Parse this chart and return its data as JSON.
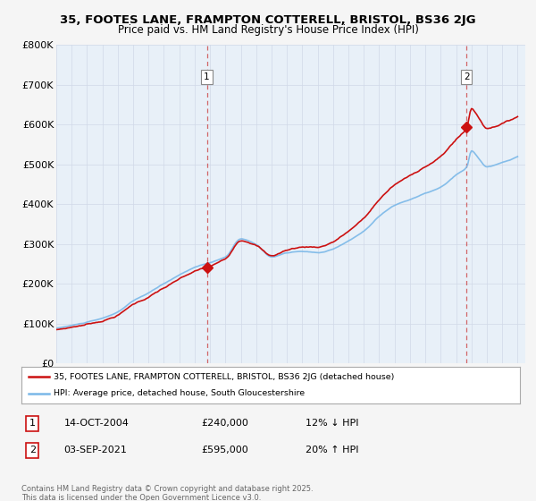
{
  "title_line1": "35, FOOTES LANE, FRAMPTON COTTERELL, BRISTOL, BS36 2JG",
  "title_line2": "Price paid vs. HM Land Registry's House Price Index (HPI)",
  "background_color": "#f5f5f5",
  "plot_bg_color": "#e8f0f8",
  "hpi_color": "#7ab8e8",
  "price_color": "#cc1111",
  "sale1_date": "14-OCT-2004",
  "sale1_price": 240000,
  "sale1_x_year": 2004.79,
  "sale1_label": "1",
  "sale1_hpi_pct": "12% ↓ HPI",
  "sale2_date": "03-SEP-2021",
  "sale2_price": 595000,
  "sale2_x_year": 2021.67,
  "sale2_label": "2",
  "sale2_hpi_pct": "20% ↑ HPI",
  "legend_label1": "35, FOOTES LANE, FRAMPTON COTTERELL, BRISTOL, BS36 2JG (detached house)",
  "legend_label2": "HPI: Average price, detached house, South Gloucestershire",
  "footer_text": "Contains HM Land Registry data © Crown copyright and database right 2025.\nThis data is licensed under the Open Government Licence v3.0.",
  "ylim": [
    0,
    800000
  ],
  "yticks": [
    0,
    100000,
    200000,
    300000,
    400000,
    500000,
    600000,
    700000,
    800000
  ],
  "ytick_labels": [
    "£0",
    "£100K",
    "£200K",
    "£300K",
    "£400K",
    "£500K",
    "£600K",
    "£700K",
    "£800K"
  ],
  "xmin": 1995.0,
  "xmax": 2025.5
}
